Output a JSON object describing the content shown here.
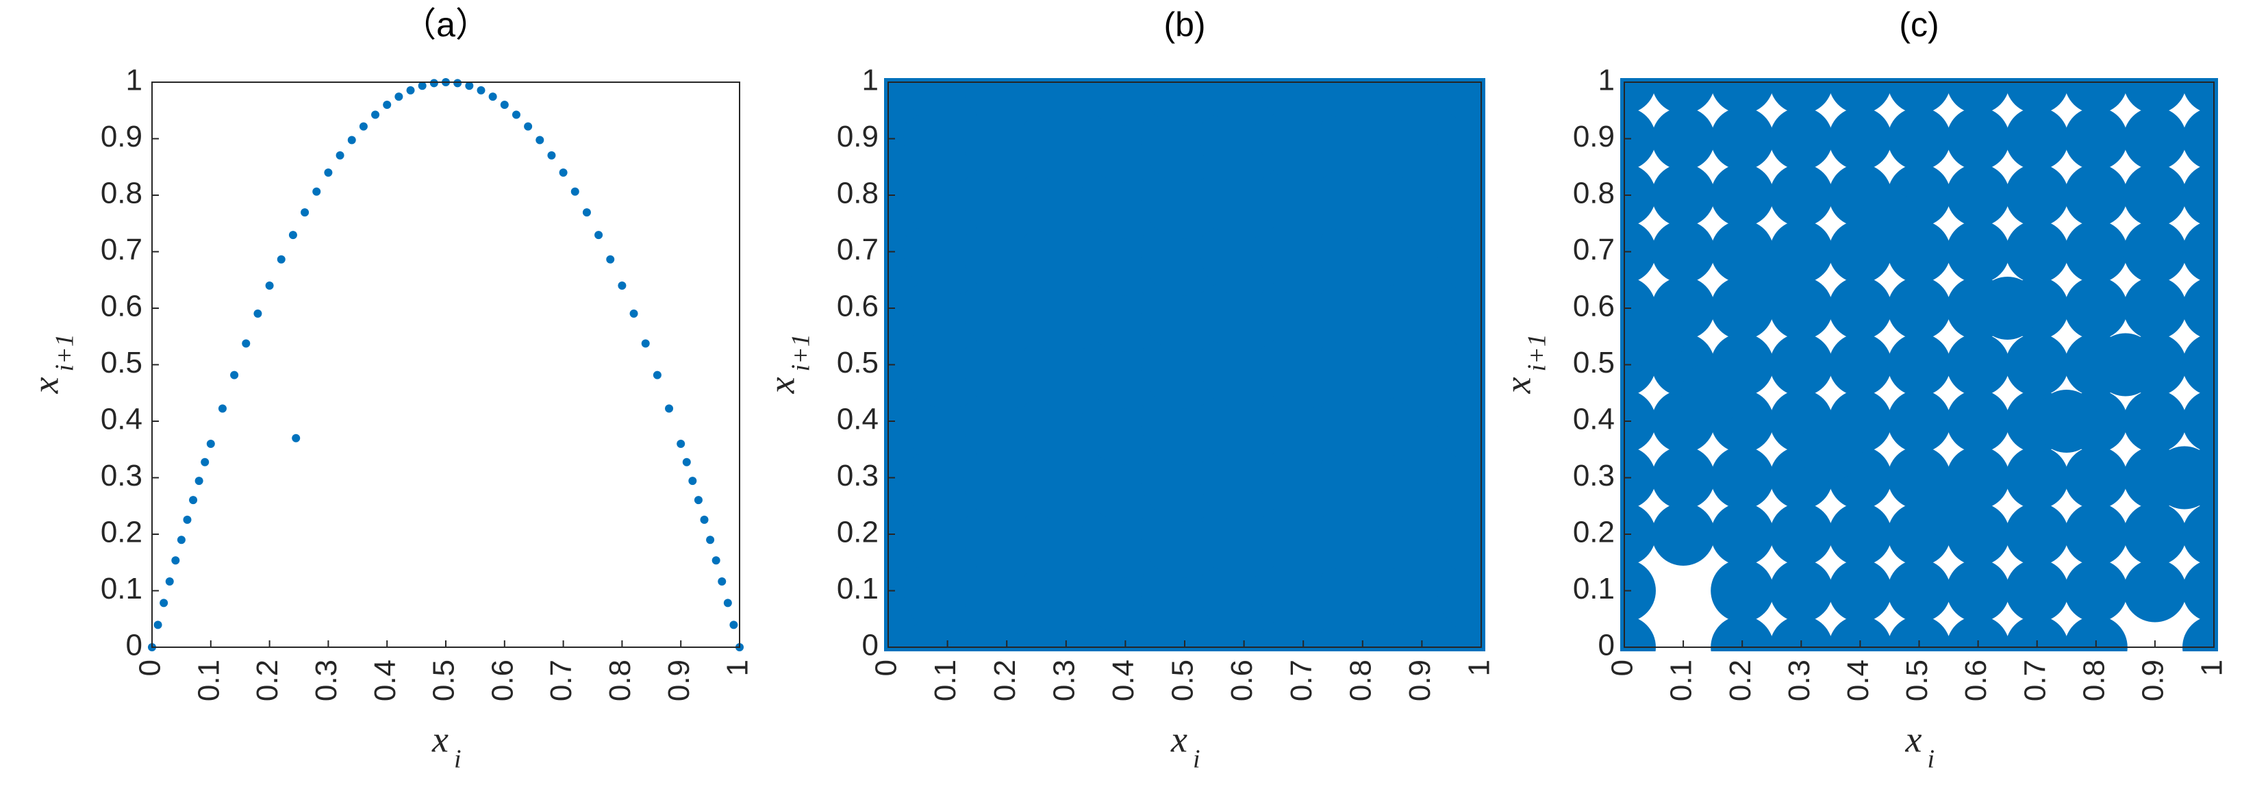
{
  "chart_data": [
    {
      "type": "scatter",
      "title": "（a）",
      "xlabel": "x",
      "xlabel_sub": "i",
      "ylabel": "x",
      "ylabel_sub": "i+1",
      "color": "#0072bd",
      "xlim": [
        0,
        1
      ],
      "ylim": [
        0,
        1
      ],
      "xticks": [
        0,
        0.1,
        0.2,
        0.3,
        0.4,
        0.5,
        0.6,
        0.7,
        0.8,
        0.9,
        1
      ],
      "yticks": [
        0,
        0.1,
        0.2,
        0.3,
        0.4,
        0.5,
        0.6,
        0.7,
        0.8,
        0.9,
        1
      ],
      "series": [
        {
          "x": [
            0,
            0.01,
            0.02,
            0.03,
            0.04,
            0.05,
            0.06,
            0.07,
            0.08,
            0.09,
            0.1,
            0.12,
            0.14,
            0.16,
            0.18,
            0.2,
            0.22,
            0.24,
            0.26,
            0.28,
            0.3,
            0.32,
            0.34,
            0.36,
            0.38,
            0.4,
            0.42,
            0.44,
            0.46,
            0.48,
            0.5,
            0.52,
            0.54,
            0.56,
            0.58,
            0.6,
            0.62,
            0.64,
            0.66,
            0.68,
            0.7,
            0.72,
            0.74,
            0.76,
            0.78,
            0.8,
            0.82,
            0.84,
            0.86,
            0.88,
            0.9,
            0.91,
            0.92,
            0.93,
            0.94,
            0.95,
            0.96,
            0.97,
            0.98,
            0.99,
            1,
            0.245
          ],
          "values": [
            0,
            0.0396,
            0.0784,
            0.1164,
            0.1536,
            0.19,
            0.2256,
            0.2604,
            0.2944,
            0.3276,
            0.36,
            0.4224,
            0.4816,
            0.5376,
            0.5904,
            0.64,
            0.6864,
            0.7296,
            0.7696,
            0.8064,
            0.84,
            0.8704,
            0.8976,
            0.9216,
            0.9424,
            0.96,
            0.9744,
            0.9856,
            0.9936,
            0.9984,
            1,
            0.9984,
            0.9936,
            0.9856,
            0.9744,
            0.96,
            0.9424,
            0.9216,
            0.8976,
            0.8704,
            0.84,
            0.8064,
            0.7696,
            0.7296,
            0.6864,
            0.64,
            0.5904,
            0.5376,
            0.4816,
            0.4224,
            0.36,
            0.3276,
            0.2944,
            0.2604,
            0.2256,
            0.19,
            0.1536,
            0.1164,
            0.0784,
            0.0396,
            0,
            0.37
          ]
        }
      ]
    },
    {
      "type": "scatter",
      "title": "(b)",
      "xlabel": "x",
      "xlabel_sub": "i",
      "ylabel": "x",
      "ylabel_sub": "i+1",
      "color": "#0072bd",
      "xlim": [
        0,
        1
      ],
      "ylim": [
        0,
        1
      ],
      "xticks": [
        0,
        0.1,
        0.2,
        0.3,
        0.4,
        0.5,
        0.6,
        0.7,
        0.8,
        0.9,
        1
      ],
      "yticks": [
        0,
        0.1,
        0.2,
        0.3,
        0.4,
        0.5,
        0.6,
        0.7,
        0.8,
        0.9,
        1
      ],
      "series": [
        {
          "x": [
            0,
            0.1,
            0.2,
            0.3,
            0.4,
            0.5,
            0.6,
            0.7,
            0.8,
            0.9,
            1,
            0,
            0.1,
            0.2,
            0.3,
            0.4,
            0.5,
            0.6,
            0.7,
            0.8,
            0.9,
            1,
            0,
            0.1,
            0.2,
            0.3,
            0.4,
            0.5,
            0.6,
            0.7,
            0.8,
            0.9,
            1,
            0,
            0.1,
            0.2,
            0.3,
            0.4,
            0.5,
            0.6,
            0.7,
            0.8,
            0.9,
            1,
            0,
            0.1,
            0.2,
            0.3,
            0.4,
            0.5,
            0.6,
            0.7,
            0.8,
            0.9,
            1,
            0,
            0.1,
            0.2,
            0.3,
            0.4,
            0.5,
            0.6,
            0.7,
            0.8,
            0.9,
            1,
            0,
            0.1,
            0.2,
            0.3,
            0.4,
            0.5,
            0.6,
            0.7,
            0.8,
            0.9,
            1,
            0,
            0.1,
            0.2,
            0.3,
            0.4,
            0.5,
            0.6,
            0.7,
            0.8,
            0.9,
            1,
            0,
            0.1,
            0.2,
            0.3,
            0.4,
            0.5,
            0.6,
            0.7,
            0.8,
            0.9,
            1,
            0,
            0.1,
            0.2,
            0.3,
            0.4,
            0.5,
            0.6,
            0.7,
            0.8,
            0.9,
            1,
            0,
            0.1,
            0.2,
            0.3,
            0.4,
            0.5,
            0.6,
            0.7,
            0.8,
            0.9,
            1
          ],
          "values": [
            0,
            0,
            0,
            0,
            0,
            0,
            0,
            0,
            0,
            0,
            0,
            0.1,
            0.1,
            0.1,
            0.1,
            0.1,
            0.1,
            0.1,
            0.1,
            0.1,
            0.1,
            0.1,
            0.2,
            0.2,
            0.2,
            0.2,
            0.2,
            0.2,
            0.2,
            0.2,
            0.2,
            0.2,
            0.2,
            0.3,
            0.3,
            0.3,
            0.3,
            0.3,
            0.3,
            0.3,
            0.3,
            0.3,
            0.3,
            0.3,
            0.4,
            0.4,
            0.4,
            0.4,
            0.4,
            0.4,
            0.4,
            0.4,
            0.4,
            0.4,
            0.4,
            0.5,
            0.5,
            0.5,
            0.5,
            0.5,
            0.5,
            0.5,
            0.5,
            0.5,
            0.5,
            0.5,
            0.6,
            0.6,
            0.6,
            0.6,
            0.6,
            0.6,
            0.6,
            0.6,
            0.6,
            0.6,
            0.6,
            0.7,
            0.7,
            0.7,
            0.7,
            0.7,
            0.7,
            0.7,
            0.7,
            0.7,
            0.7,
            0.7,
            0.8,
            0.8,
            0.8,
            0.8,
            0.8,
            0.8,
            0.8,
            0.8,
            0.8,
            0.8,
            0.8,
            0.9,
            0.9,
            0.9,
            0.9,
            0.9,
            0.9,
            0.9,
            0.9,
            0.9,
            0.9,
            0.9,
            1,
            1,
            1,
            1,
            1,
            1,
            1,
            1,
            1,
            1,
            1
          ]
        }
      ]
    },
    {
      "type": "scatter",
      "title": "(c)",
      "xlabel": "x",
      "xlabel_sub": "i",
      "ylabel": "x",
      "ylabel_sub": "i+1",
      "color": "#0072bd",
      "xlim": [
        0,
        1
      ],
      "ylim": [
        0,
        1
      ],
      "xticks": [
        0,
        0.1,
        0.2,
        0.3,
        0.4,
        0.5,
        0.6,
        0.7,
        0.8,
        0.9,
        1
      ],
      "yticks": [
        0,
        0.1,
        0.2,
        0.3,
        0.4,
        0.5,
        0.6,
        0.7,
        0.8,
        0.9,
        1
      ],
      "series": [
        {
          "x": [
            0,
            0.2,
            0.3,
            0.4,
            0.5,
            0.6,
            0.7,
            0.8,
            1,
            0,
            0.2,
            0.3,
            0.4,
            0.5,
            0.6,
            0.7,
            0.8,
            0.9,
            1,
            0,
            0.1,
            0.2,
            0.3,
            0.4,
            0.5,
            0.6,
            0.7,
            0.8,
            0.9,
            1,
            0,
            0.1,
            0.2,
            0.3,
            0.4,
            0.5,
            0.6,
            0.7,
            0.8,
            0.9,
            1,
            0,
            0.1,
            0.2,
            0.3,
            0.4,
            0.5,
            0.6,
            0.7,
            0.8,
            0.9,
            1,
            0,
            0.1,
            0.2,
            0.3,
            0.4,
            0.5,
            0.6,
            0.7,
            0.8,
            0.9,
            1,
            0,
            0.1,
            0.2,
            0.3,
            0.4,
            0.5,
            0.6,
            0.7,
            0.8,
            0.9,
            1,
            0,
            0.1,
            0.2,
            0.3,
            0.4,
            0.5,
            0.6,
            0.7,
            0.8,
            0.9,
            1,
            0,
            0.1,
            0.2,
            0.3,
            0.4,
            0.5,
            0.6,
            0.7,
            0.8,
            0.9,
            1,
            0,
            0.1,
            0.2,
            0.3,
            0.4,
            0.5,
            0.6,
            0.7,
            0.8,
            0.9,
            1,
            0,
            0.1,
            0.2,
            0.3,
            0.4,
            0.5,
            0.6,
            0.7,
            0.8,
            0.9,
            1,
            0.05,
            0.15,
            0.25,
            0.35,
            0.45,
            0.55,
            0.65,
            0.75,
            0.85,
            0.95
          ],
          "values": [
            0,
            0,
            0,
            0,
            0,
            0,
            0,
            0,
            0,
            0.1,
            0.1,
            0.1,
            0.1,
            0.1,
            0.1,
            0.1,
            0.1,
            0.1,
            0.1,
            0.2,
            0.2,
            0.2,
            0.2,
            0.2,
            0.2,
            0.2,
            0.2,
            0.2,
            0.2,
            0.2,
            0.3,
            0.3,
            0.3,
            0.3,
            0.3,
            0.3,
            0.3,
            0.3,
            0.3,
            0.3,
            0.3,
            0.4,
            0.4,
            0.4,
            0.4,
            0.4,
            0.4,
            0.4,
            0.4,
            0.4,
            0.4,
            0.4,
            0.5,
            0.5,
            0.5,
            0.5,
            0.5,
            0.5,
            0.5,
            0.5,
            0.5,
            0.5,
            0.5,
            0.6,
            0.6,
            0.6,
            0.6,
            0.6,
            0.6,
            0.6,
            0.6,
            0.6,
            0.6,
            0.6,
            0.7,
            0.7,
            0.7,
            0.7,
            0.7,
            0.7,
            0.7,
            0.7,
            0.7,
            0.7,
            0.7,
            0.8,
            0.8,
            0.8,
            0.8,
            0.8,
            0.8,
            0.8,
            0.8,
            0.8,
            0.8,
            0.8,
            0.9,
            0.9,
            0.9,
            0.9,
            0.9,
            0.9,
            0.9,
            0.9,
            0.9,
            0.9,
            0.9,
            1,
            1,
            1,
            1,
            1,
            1,
            1,
            1,
            1,
            1,
            1,
            0.55,
            0.45,
            0.65,
            0.35,
            0.75,
            0.25,
            0.6,
            0.4,
            0.5,
            0.3
          ]
        }
      ]
    }
  ]
}
